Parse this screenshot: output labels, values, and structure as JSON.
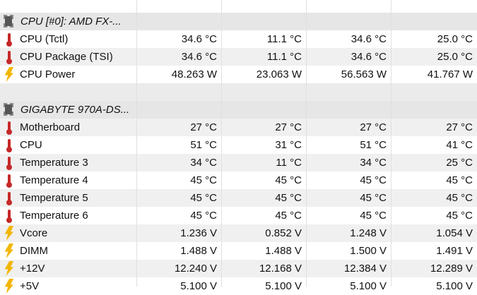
{
  "groups": [
    {
      "name": "CPU [#0]: AMD FX-...",
      "rows": [
        {
          "label": "CPU (Tctl)",
          "values": [
            "34.6 °C",
            "11.1 °C",
            "34.6 °C",
            "25.0 °C"
          ]
        },
        {
          "label": "CPU Package (TSI)",
          "values": [
            "34.6 °C",
            "11.1 °C",
            "34.6 °C",
            "25.0 °C"
          ]
        },
        {
          "label": "CPU Power",
          "values": [
            "48.263 W",
            "23.063 W",
            "56.563 W",
            "41.767 W"
          ]
        }
      ]
    },
    {
      "name": "GIGABYTE 970A-DS...",
      "rows": [
        {
          "label": "Motherboard",
          "values": [
            "27 °C",
            "27 °C",
            "27 °C",
            "27 °C"
          ]
        },
        {
          "label": "CPU",
          "values": [
            "51 °C",
            "31 °C",
            "51 °C",
            "41 °C"
          ]
        },
        {
          "label": "Temperature 3",
          "values": [
            "34 °C",
            "11 °C",
            "34 °C",
            "25 °C"
          ]
        },
        {
          "label": "Temperature 4",
          "values": [
            "45 °C",
            "45 °C",
            "45 °C",
            "45 °C"
          ]
        },
        {
          "label": "Temperature 5",
          "values": [
            "45 °C",
            "45 °C",
            "45 °C",
            "45 °C"
          ]
        },
        {
          "label": "Temperature 6",
          "values": [
            "45 °C",
            "45 °C",
            "45 °C",
            "45 °C"
          ]
        },
        {
          "label": "Vcore",
          "values": [
            "1.236 V",
            "0.852 V",
            "1.248 V",
            "1.054 V"
          ]
        },
        {
          "label": "DIMM",
          "values": [
            "1.488 V",
            "1.488 V",
            "1.500 V",
            "1.491 V"
          ]
        },
        {
          "label": "+12V",
          "values": [
            "12.240 V",
            "12.168 V",
            "12.384 V",
            "12.289 V"
          ]
        },
        {
          "label": "+5V",
          "values": [
            "5.100 V",
            "5.100 V",
            "5.100 V",
            "5.100 V"
          ]
        }
      ]
    }
  ]
}
